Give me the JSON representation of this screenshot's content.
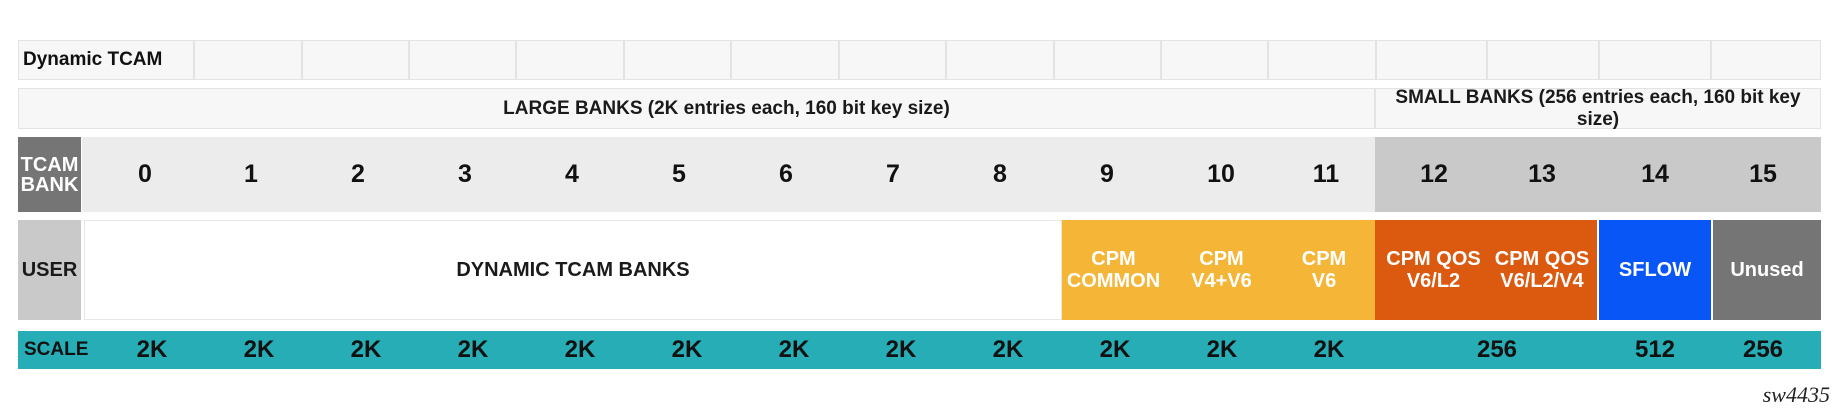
{
  "title": "Dynamic TCAM",
  "large_banks_label": "LARGE BANKS (2K entries each, 160 bit key size)",
  "small_banks_label": "SMALL BANKS (256 entries each, 160 bit key size)",
  "tcam_bank_label": "TCAM\nBANK",
  "bank_numbers": [
    "0",
    "1",
    "2",
    "3",
    "4",
    "5",
    "6",
    "7",
    "8",
    "9",
    "10",
    "11",
    "12",
    "13",
    "14",
    "15"
  ],
  "user_label": "USER",
  "users": {
    "dynamic": "DYNAMIC TCAM BANKS",
    "cpm_common": "CPM\nCOMMON",
    "cpm_v4v6": "CPM\nV4+V6",
    "cpm_v6": "CPM\nV6",
    "cpm_qos_l2": "CPM QOS\nV6/L2",
    "cpm_qos_l2v4": "CPM QOS\nV6/L2/V4",
    "sflow": "SFLOW",
    "unused": "Unused"
  },
  "scale_label": "SCALE",
  "scale_values": [
    "2K",
    "2K",
    "2K",
    "2K",
    "2K",
    "2K",
    "2K",
    "2K",
    "2K",
    "2K",
    "2K",
    "2K",
    "256",
    "512",
    "256"
  ],
  "caption": "sw4435",
  "colors": {
    "tcam_bank_header": "#757575",
    "large_bank_row": "#ececec",
    "small_bank_row": "#c9c9c9",
    "cpm_orange": "#f5b536",
    "cpm_qos_orange": "#dc5a10",
    "sflow_blue": "#0856f5",
    "unused_gray": "#757575",
    "scale_teal": "#26adb5"
  }
}
